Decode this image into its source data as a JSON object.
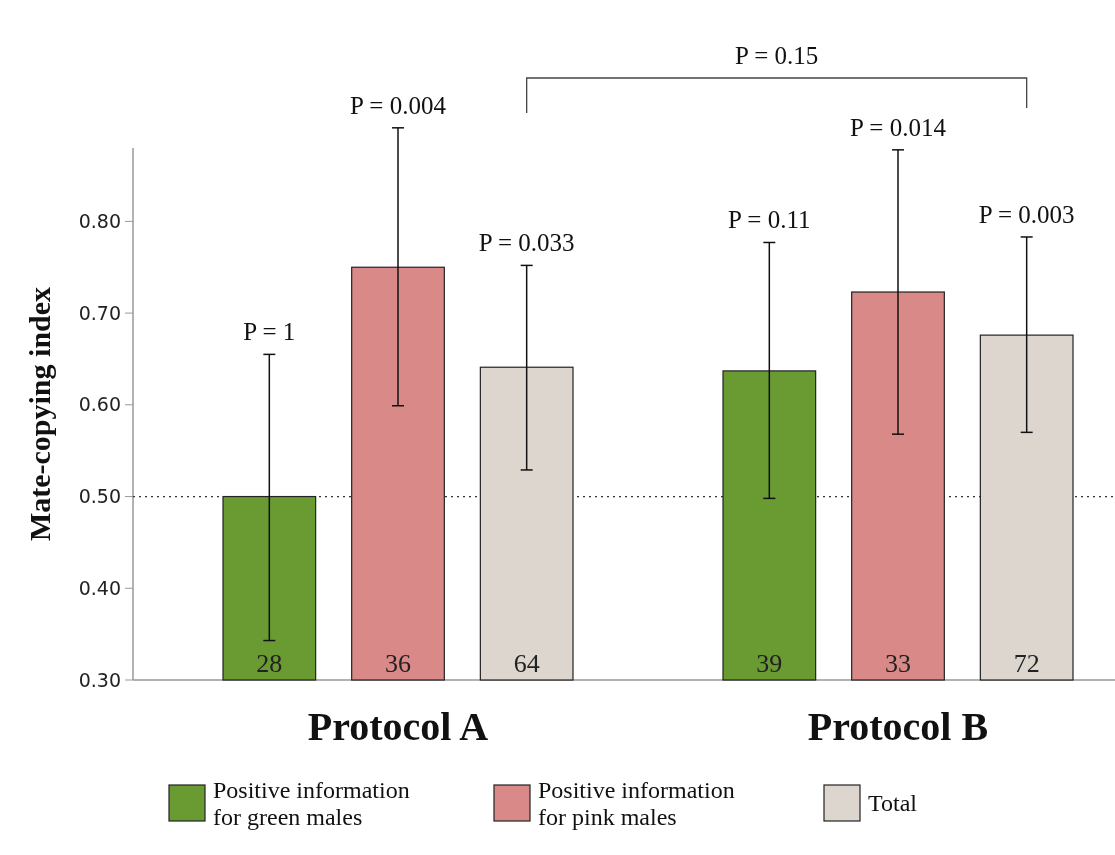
{
  "chart_data": {
    "type": "bar",
    "ylabel": "Mate-copying index",
    "categories": [
      "Protocol A",
      "Protocol B"
    ],
    "series": [
      {
        "name": "Positive information for green males",
        "color": "#6a9a32",
        "values": [
          0.5,
          0.637
        ],
        "errors": [
          [
            0.343,
            0.655
          ],
          [
            0.498,
            0.777
          ]
        ]
      },
      {
        "name": "Positive information for pink males",
        "color": "#d98a88",
        "values": [
          0.75,
          0.723
        ],
        "errors": [
          [
            0.599,
            0.902
          ],
          [
            0.568,
            0.878
          ]
        ]
      },
      {
        "name": "Total",
        "color": "#ddd6cf",
        "values": [
          0.641,
          0.676
        ],
        "errors": [
          [
            0.529,
            0.752
          ],
          [
            0.57,
            0.783
          ]
        ]
      }
    ],
    "ylim": [
      0.3,
      0.88
    ],
    "yticks": [
      {
        "value": 0.3,
        "label": "0.30"
      },
      {
        "value": 0.4,
        "label": "0.40"
      },
      {
        "value": 0.5,
        "label": "0.50"
      },
      {
        "value": 0.6,
        "label": "0.60"
      },
      {
        "value": 0.7,
        "label": "0.70"
      },
      {
        "value": 0.8,
        "label": "0.80"
      }
    ],
    "ref_lines": [
      {
        "axis": "y",
        "value": 0.5,
        "line_style": "dotted",
        "color": "#333333"
      }
    ],
    "annotations": [
      "P = 1",
      "P = 0.004",
      "P = 0.033",
      "P = 0.11",
      "P = 0.014",
      "P = 0.003",
      "P = 0.15",
      "28",
      "36",
      "64",
      "39",
      "33",
      "72"
    ],
    "legend": "bottom",
    "grid": false
  }
}
